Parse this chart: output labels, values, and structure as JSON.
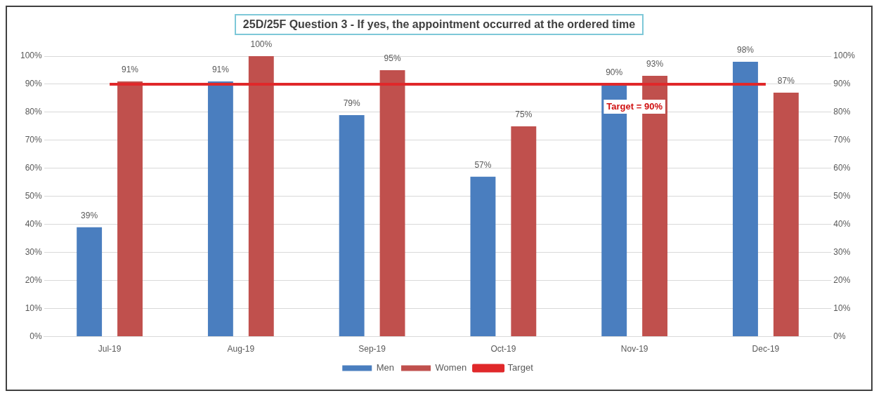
{
  "chart_data": {
    "type": "bar",
    "title": "25D/25F Question 3 - If yes, the appointment occurred at the ordered time",
    "categories": [
      "Jul-19",
      "Aug-19",
      "Sep-19",
      "Oct-19",
      "Nov-19",
      "Dec-19"
    ],
    "series": [
      {
        "name": "Men",
        "color": "#4a7ebf",
        "values": [
          39,
          91,
          79,
          57,
          90,
          98
        ],
        "value_labels": [
          "39%",
          "91%",
          "79%",
          "57%",
          "90%",
          "98%"
        ]
      },
      {
        "name": "Women",
        "color": "#c0504d",
        "values": [
          91,
          100,
          95,
          75,
          93,
          87
        ],
        "value_labels": [
          "91%",
          "100%",
          "95%",
          "75%",
          "93%",
          "87%"
        ]
      },
      {
        "name": "Target",
        "type": "line",
        "color": "#e0282a",
        "values": [
          90,
          90,
          90,
          90,
          90,
          90
        ]
      }
    ],
    "ylim": [
      0,
      100
    ],
    "yticks": [
      {
        "value": 0,
        "label": "0%"
      },
      {
        "value": 10,
        "label": "10%"
      },
      {
        "value": 20,
        "label": "20%"
      },
      {
        "value": 30,
        "label": "30%"
      },
      {
        "value": 40,
        "label": "40%"
      },
      {
        "value": 50,
        "label": "50%"
      },
      {
        "value": 60,
        "label": "60%"
      },
      {
        "value": 70,
        "label": "70%"
      },
      {
        "value": 80,
        "label": "80%"
      },
      {
        "value": 90,
        "label": "90%"
      },
      {
        "value": 100,
        "label": "100%"
      }
    ],
    "y2lim": [
      0,
      100
    ],
    "y2ticks": [
      {
        "value": 0,
        "label": "0%"
      },
      {
        "value": 10,
        "label": "10%"
      },
      {
        "value": 20,
        "label": "20%"
      },
      {
        "value": 30,
        "label": "30%"
      },
      {
        "value": 40,
        "label": "40%"
      },
      {
        "value": 50,
        "label": "50%"
      },
      {
        "value": 60,
        "label": "60%"
      },
      {
        "value": 70,
        "label": "70%"
      },
      {
        "value": 80,
        "label": "80%"
      },
      {
        "value": 90,
        "label": "90%"
      },
      {
        "value": 100,
        "label": "100%"
      }
    ],
    "annotations": [
      {
        "text": "Target = 90%",
        "x": "Nov-19",
        "y": 90
      }
    ],
    "grid": "y",
    "legend": "bottom",
    "marker": "none",
    "line_style": "solid"
  }
}
